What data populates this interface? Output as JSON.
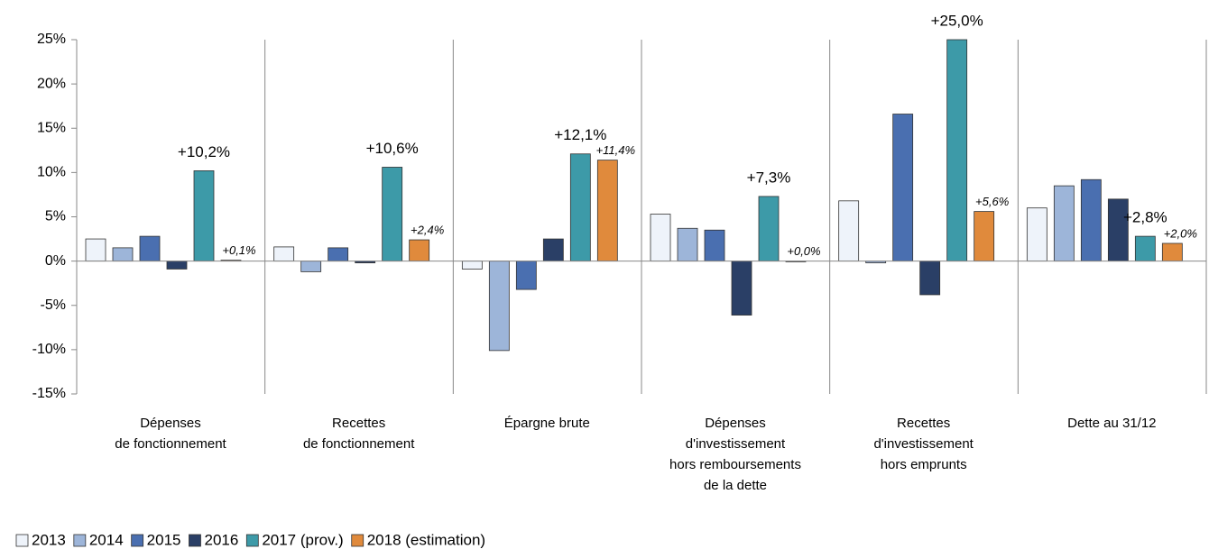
{
  "chart_data": {
    "type": "bar",
    "categories": [
      "Dépenses\nde fonctionnement",
      "Recettes\nde fonctionnement",
      "Épargne brute",
      "Dépenses\nd'investissement\nhors remboursements\nde la dette",
      "Recettes\nd'investissement\nhors emprunts",
      "Dette au 31/12"
    ],
    "series": [
      {
        "name": "2013",
        "color": "#eef3fa",
        "values": [
          2.5,
          1.6,
          -0.9,
          5.3,
          6.8,
          6.0
        ]
      },
      {
        "name": "2014",
        "color": "#9db5d9",
        "values": [
          1.5,
          -1.2,
          -10.1,
          3.7,
          -0.2,
          8.5
        ]
      },
      {
        "name": "2015",
        "color": "#4a6fb0",
        "values": [
          2.8,
          1.5,
          -3.2,
          3.5,
          16.6,
          9.2
        ]
      },
      {
        "name": "2016",
        "color": "#2a3f66",
        "values": [
          -0.9,
          -0.2,
          2.5,
          -6.1,
          -3.8,
          7.0
        ]
      },
      {
        "name": "2017 (prov.)",
        "color": "#3d9aa8",
        "values": [
          10.2,
          10.6,
          12.1,
          7.3,
          25.0,
          2.8
        ],
        "value_labels": [
          "+10,2%",
          "+10,6%",
          "+12,1%",
          "+7,3%",
          "+25,0%",
          "+2,8%"
        ]
      },
      {
        "name": "2018 (estimation)",
        "color": "#e08a3c",
        "values": [
          0.1,
          2.4,
          11.4,
          0.0,
          5.6,
          2.0
        ],
        "value_labels": [
          "+0,1%",
          "+2,4%",
          "+11,4%",
          "+0,0%",
          "+5,6%",
          "+2,0%"
        ]
      }
    ],
    "ylim": [
      -15,
      25
    ],
    "yticks": [
      {
        "value": -15,
        "label": "-15%"
      },
      {
        "value": -10,
        "label": "-10%"
      },
      {
        "value": -5,
        "label": "-5%"
      },
      {
        "value": 0,
        "label": "0%"
      },
      {
        "value": 5,
        "label": "5%"
      },
      {
        "value": 10,
        "label": "10%"
      },
      {
        "value": 15,
        "label": "15%"
      },
      {
        "value": 20,
        "label": "20%"
      },
      {
        "value": 25,
        "label": "25%"
      }
    ],
    "legend": "bottom-left"
  }
}
